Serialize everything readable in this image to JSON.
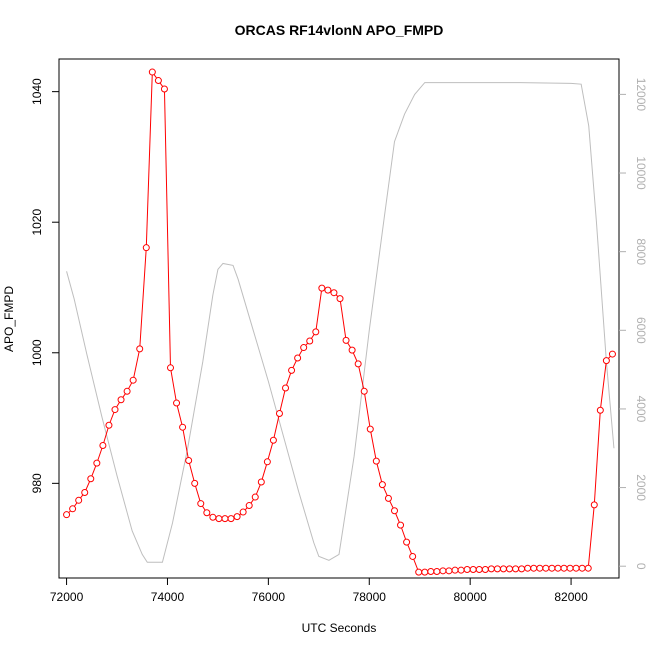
{
  "chart_data": {
    "type": "line",
    "title": "ORCAS RF14vlonN APO_FMPD",
    "xlabel": "UTC Seconds",
    "ylabel": "APO_FMPD",
    "xlim": [
      71850,
      82950
    ],
    "ylim": [
      965.5,
      1045
    ],
    "ylim_right": [
      -300,
      12900
    ],
    "x_ticks": [
      72000,
      74000,
      76000,
      78000,
      80000,
      82000
    ],
    "y_ticks": [
      980,
      1000,
      1020,
      1040
    ],
    "y_ticks_right": [
      0,
      2000,
      4000,
      6000,
      8000,
      10000,
      12000
    ],
    "grid": false,
    "legend": "none",
    "colors": {
      "primary": "#ff0000",
      "secondary": "#bebebe",
      "axes": "#000000",
      "right_axis": "#b0b0b0"
    },
    "series": [
      {
        "axis": "left",
        "style": "line-points",
        "color": "#ff0000",
        "points": [
          [
            72000,
            975.2
          ],
          [
            72120,
            976.1
          ],
          [
            72240,
            977.4
          ],
          [
            72360,
            978.6
          ],
          [
            72480,
            980.7
          ],
          [
            72600,
            983.1
          ],
          [
            72720,
            985.8
          ],
          [
            72840,
            988.9
          ],
          [
            72960,
            991.3
          ],
          [
            73080,
            992.8
          ],
          [
            73200,
            994.1
          ],
          [
            73320,
            995.8
          ],
          [
            73450,
            1000.6
          ],
          [
            73580,
            1016.1
          ],
          [
            73700,
            1043.0
          ],
          [
            73820,
            1041.7
          ],
          [
            73940,
            1040.4
          ],
          [
            74060,
            997.7
          ],
          [
            74180,
            992.3
          ],
          [
            74300,
            988.6
          ],
          [
            74420,
            983.5
          ],
          [
            74540,
            980.0
          ],
          [
            74660,
            976.9
          ],
          [
            74780,
            975.5
          ],
          [
            74900,
            974.8
          ],
          [
            75020,
            974.6
          ],
          [
            75140,
            974.6
          ],
          [
            75260,
            974.6
          ],
          [
            75380,
            974.9
          ],
          [
            75500,
            975.6
          ],
          [
            75620,
            976.6
          ],
          [
            75740,
            977.9
          ],
          [
            75860,
            980.2
          ],
          [
            75980,
            983.3
          ],
          [
            76100,
            986.6
          ],
          [
            76220,
            990.7
          ],
          [
            76340,
            994.6
          ],
          [
            76460,
            997.3
          ],
          [
            76580,
            999.2
          ],
          [
            76700,
            1000.8
          ],
          [
            76820,
            1001.8
          ],
          [
            76940,
            1003.2
          ],
          [
            77060,
            1009.9
          ],
          [
            77180,
            1009.6
          ],
          [
            77300,
            1009.2
          ],
          [
            77420,
            1008.3
          ],
          [
            77540,
            1001.9
          ],
          [
            77660,
            1000.4
          ],
          [
            77780,
            998.3
          ],
          [
            77900,
            994.1
          ],
          [
            78020,
            988.3
          ],
          [
            78140,
            983.4
          ],
          [
            78260,
            979.8
          ],
          [
            78380,
            977.7
          ],
          [
            78500,
            975.8
          ],
          [
            78620,
            973.6
          ],
          [
            78740,
            971.0
          ],
          [
            78860,
            968.8
          ],
          [
            78980,
            966.4
          ],
          [
            79100,
            966.4
          ],
          [
            79220,
            966.5
          ],
          [
            79340,
            966.5
          ],
          [
            79460,
            966.6
          ],
          [
            79580,
            966.6
          ],
          [
            79700,
            966.7
          ],
          [
            79820,
            966.7
          ],
          [
            79940,
            966.8
          ],
          [
            80060,
            966.8
          ],
          [
            80180,
            966.8
          ],
          [
            80300,
            966.8
          ],
          [
            80420,
            966.9
          ],
          [
            80540,
            966.9
          ],
          [
            80660,
            966.9
          ],
          [
            80780,
            966.9
          ],
          [
            80900,
            966.9
          ],
          [
            81020,
            966.9
          ],
          [
            81140,
            967.0
          ],
          [
            81260,
            967.0
          ],
          [
            81380,
            967.0
          ],
          [
            81500,
            967.0
          ],
          [
            81620,
            967.0
          ],
          [
            81740,
            967.0
          ],
          [
            81860,
            967.0
          ],
          [
            81980,
            967.0
          ],
          [
            82100,
            967.0
          ],
          [
            82220,
            967.0
          ],
          [
            82340,
            967.0
          ],
          [
            82460,
            976.7
          ],
          [
            82580,
            991.2
          ],
          [
            82700,
            998.8
          ],
          [
            82820,
            999.8
          ]
        ]
      },
      {
        "axis": "right",
        "style": "line",
        "color": "#bebebe",
        "points": [
          [
            72000,
            7500
          ],
          [
            72150,
            6800
          ],
          [
            72400,
            5400
          ],
          [
            72700,
            3800
          ],
          [
            73000,
            2300
          ],
          [
            73300,
            900
          ],
          [
            73500,
            300
          ],
          [
            73600,
            100
          ],
          [
            73900,
            100
          ],
          [
            74100,
            1100
          ],
          [
            74400,
            3000
          ],
          [
            74700,
            5200
          ],
          [
            74900,
            6900
          ],
          [
            75000,
            7550
          ],
          [
            75100,
            7700
          ],
          [
            75300,
            7650
          ],
          [
            75400,
            7300
          ],
          [
            75700,
            6000
          ],
          [
            76000,
            4700
          ],
          [
            76300,
            3300
          ],
          [
            76600,
            1900
          ],
          [
            76900,
            600
          ],
          [
            77000,
            250
          ],
          [
            77200,
            150
          ],
          [
            77400,
            300
          ],
          [
            77700,
            2800
          ],
          [
            78000,
            6000
          ],
          [
            78300,
            8900
          ],
          [
            78500,
            10800
          ],
          [
            78700,
            11500
          ],
          [
            78900,
            12000
          ],
          [
            79100,
            12300
          ],
          [
            80000,
            12300
          ],
          [
            81000,
            12300
          ],
          [
            82000,
            12280
          ],
          [
            82200,
            12260
          ],
          [
            82350,
            11200
          ],
          [
            82500,
            8800
          ],
          [
            82700,
            5200
          ],
          [
            82850,
            3000
          ]
        ]
      }
    ]
  }
}
